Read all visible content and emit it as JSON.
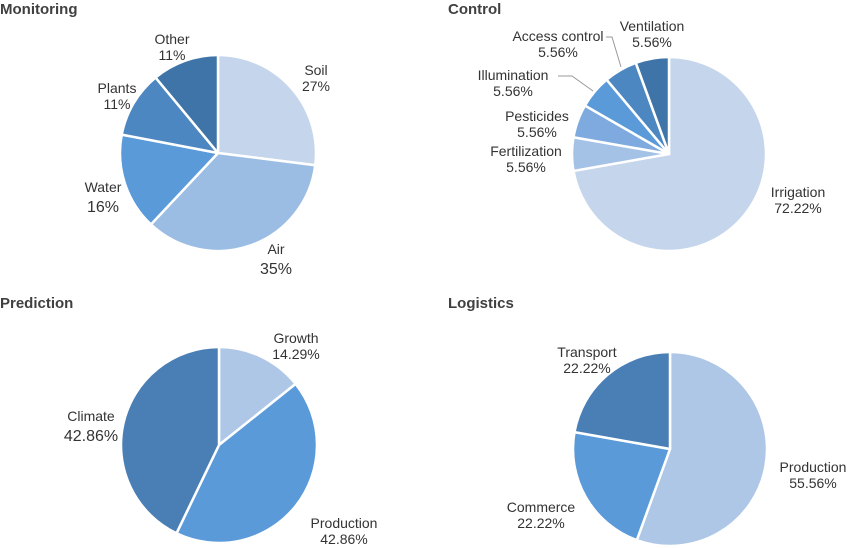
{
  "chart_data": [
    {
      "type": "pie",
      "title": "Monitoring",
      "start_angle_deg": 0,
      "direction": "clockwise",
      "slices": [
        {
          "label": "Soil",
          "value": 27,
          "text": "27%",
          "color": "#c5d6ec"
        },
        {
          "label": "Air",
          "value": 35,
          "text": "35%",
          "color": "#9cbde3"
        },
        {
          "label": "Water",
          "value": 16,
          "text": "16%",
          "color": "#5b9ad9"
        },
        {
          "label": "Plants",
          "value": 11,
          "text": "11%",
          "color": "#4d87c1"
        },
        {
          "label": "Other",
          "value": 11,
          "text": "11%",
          "color": "#3f74a8"
        }
      ]
    },
    {
      "type": "pie",
      "title": "Control",
      "start_angle_deg": 0,
      "direction": "clockwise",
      "slices": [
        {
          "label": "Irrigation",
          "value": 72.22,
          "text": "72.22%",
          "color": "#c5d6ec"
        },
        {
          "label": "Fertilization",
          "value": 5.56,
          "text": "5.56%",
          "color": "#a4c2e6"
        },
        {
          "label": "Pesticides",
          "value": 5.56,
          "text": "5.56%",
          "color": "#7eaadf"
        },
        {
          "label": "Illumination",
          "value": 5.56,
          "text": "5.56%",
          "color": "#5b9ad9"
        },
        {
          "label": "Access control",
          "value": 5.56,
          "text": "5.56%",
          "color": "#4d87c1"
        },
        {
          "label": "Ventilation",
          "value": 5.56,
          "text": "5.56%",
          "color": "#3f74a8"
        }
      ]
    },
    {
      "type": "pie",
      "title": "Prediction",
      "start_angle_deg": 0,
      "direction": "clockwise",
      "slices": [
        {
          "label": "Growth",
          "value": 14.29,
          "text": "14.29%",
          "color": "#aec7e6"
        },
        {
          "label": "Production",
          "value": 42.86,
          "text": "42.86%",
          "color": "#5b9ad9"
        },
        {
          "label": "Climate",
          "value": 42.86,
          "text": "42.86%",
          "color": "#4a7fb5"
        }
      ]
    },
    {
      "type": "pie",
      "title": "Logistics",
      "start_angle_deg": 0,
      "direction": "clockwise",
      "slices": [
        {
          "label": "Production",
          "value": 55.56,
          "text": "55.56%",
          "color": "#aec7e6"
        },
        {
          "label": "Commerce",
          "value": 22.22,
          "text": "22.22%",
          "color": "#5b9ad9"
        },
        {
          "label": "Transport",
          "value": 22.22,
          "text": "22.22%",
          "color": "#4a7fb5"
        }
      ]
    }
  ]
}
